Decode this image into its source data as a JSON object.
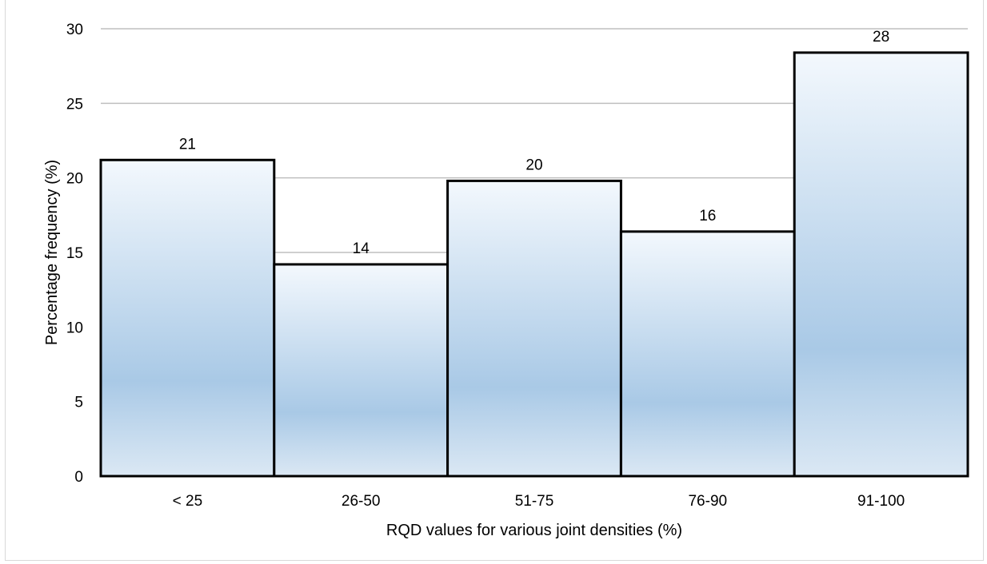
{
  "chart_data": {
    "type": "bar",
    "categories": [
      "< 25",
      "26-50",
      "51-75",
      "76-90",
      "91-100"
    ],
    "values": [
      21.2,
      14.2,
      19.8,
      16.4,
      28.4
    ],
    "data_labels": [
      "21",
      "14",
      "20",
      "16",
      "28"
    ],
    "title": "",
    "xlabel": "RQD values for various joint densities (%)",
    "ylabel": "Percentage frequency  (%)",
    "ylim": [
      0,
      30
    ],
    "yticks": [
      0,
      5,
      10,
      15,
      20,
      25,
      30
    ],
    "grid": true,
    "legend": "none",
    "bar_gap": 0,
    "colors": {
      "bar_top": "#f3f8fd",
      "bar_bottom": "#a9c9e6",
      "bar_edge": "#000000",
      "grid": "#bfbfbf"
    }
  }
}
